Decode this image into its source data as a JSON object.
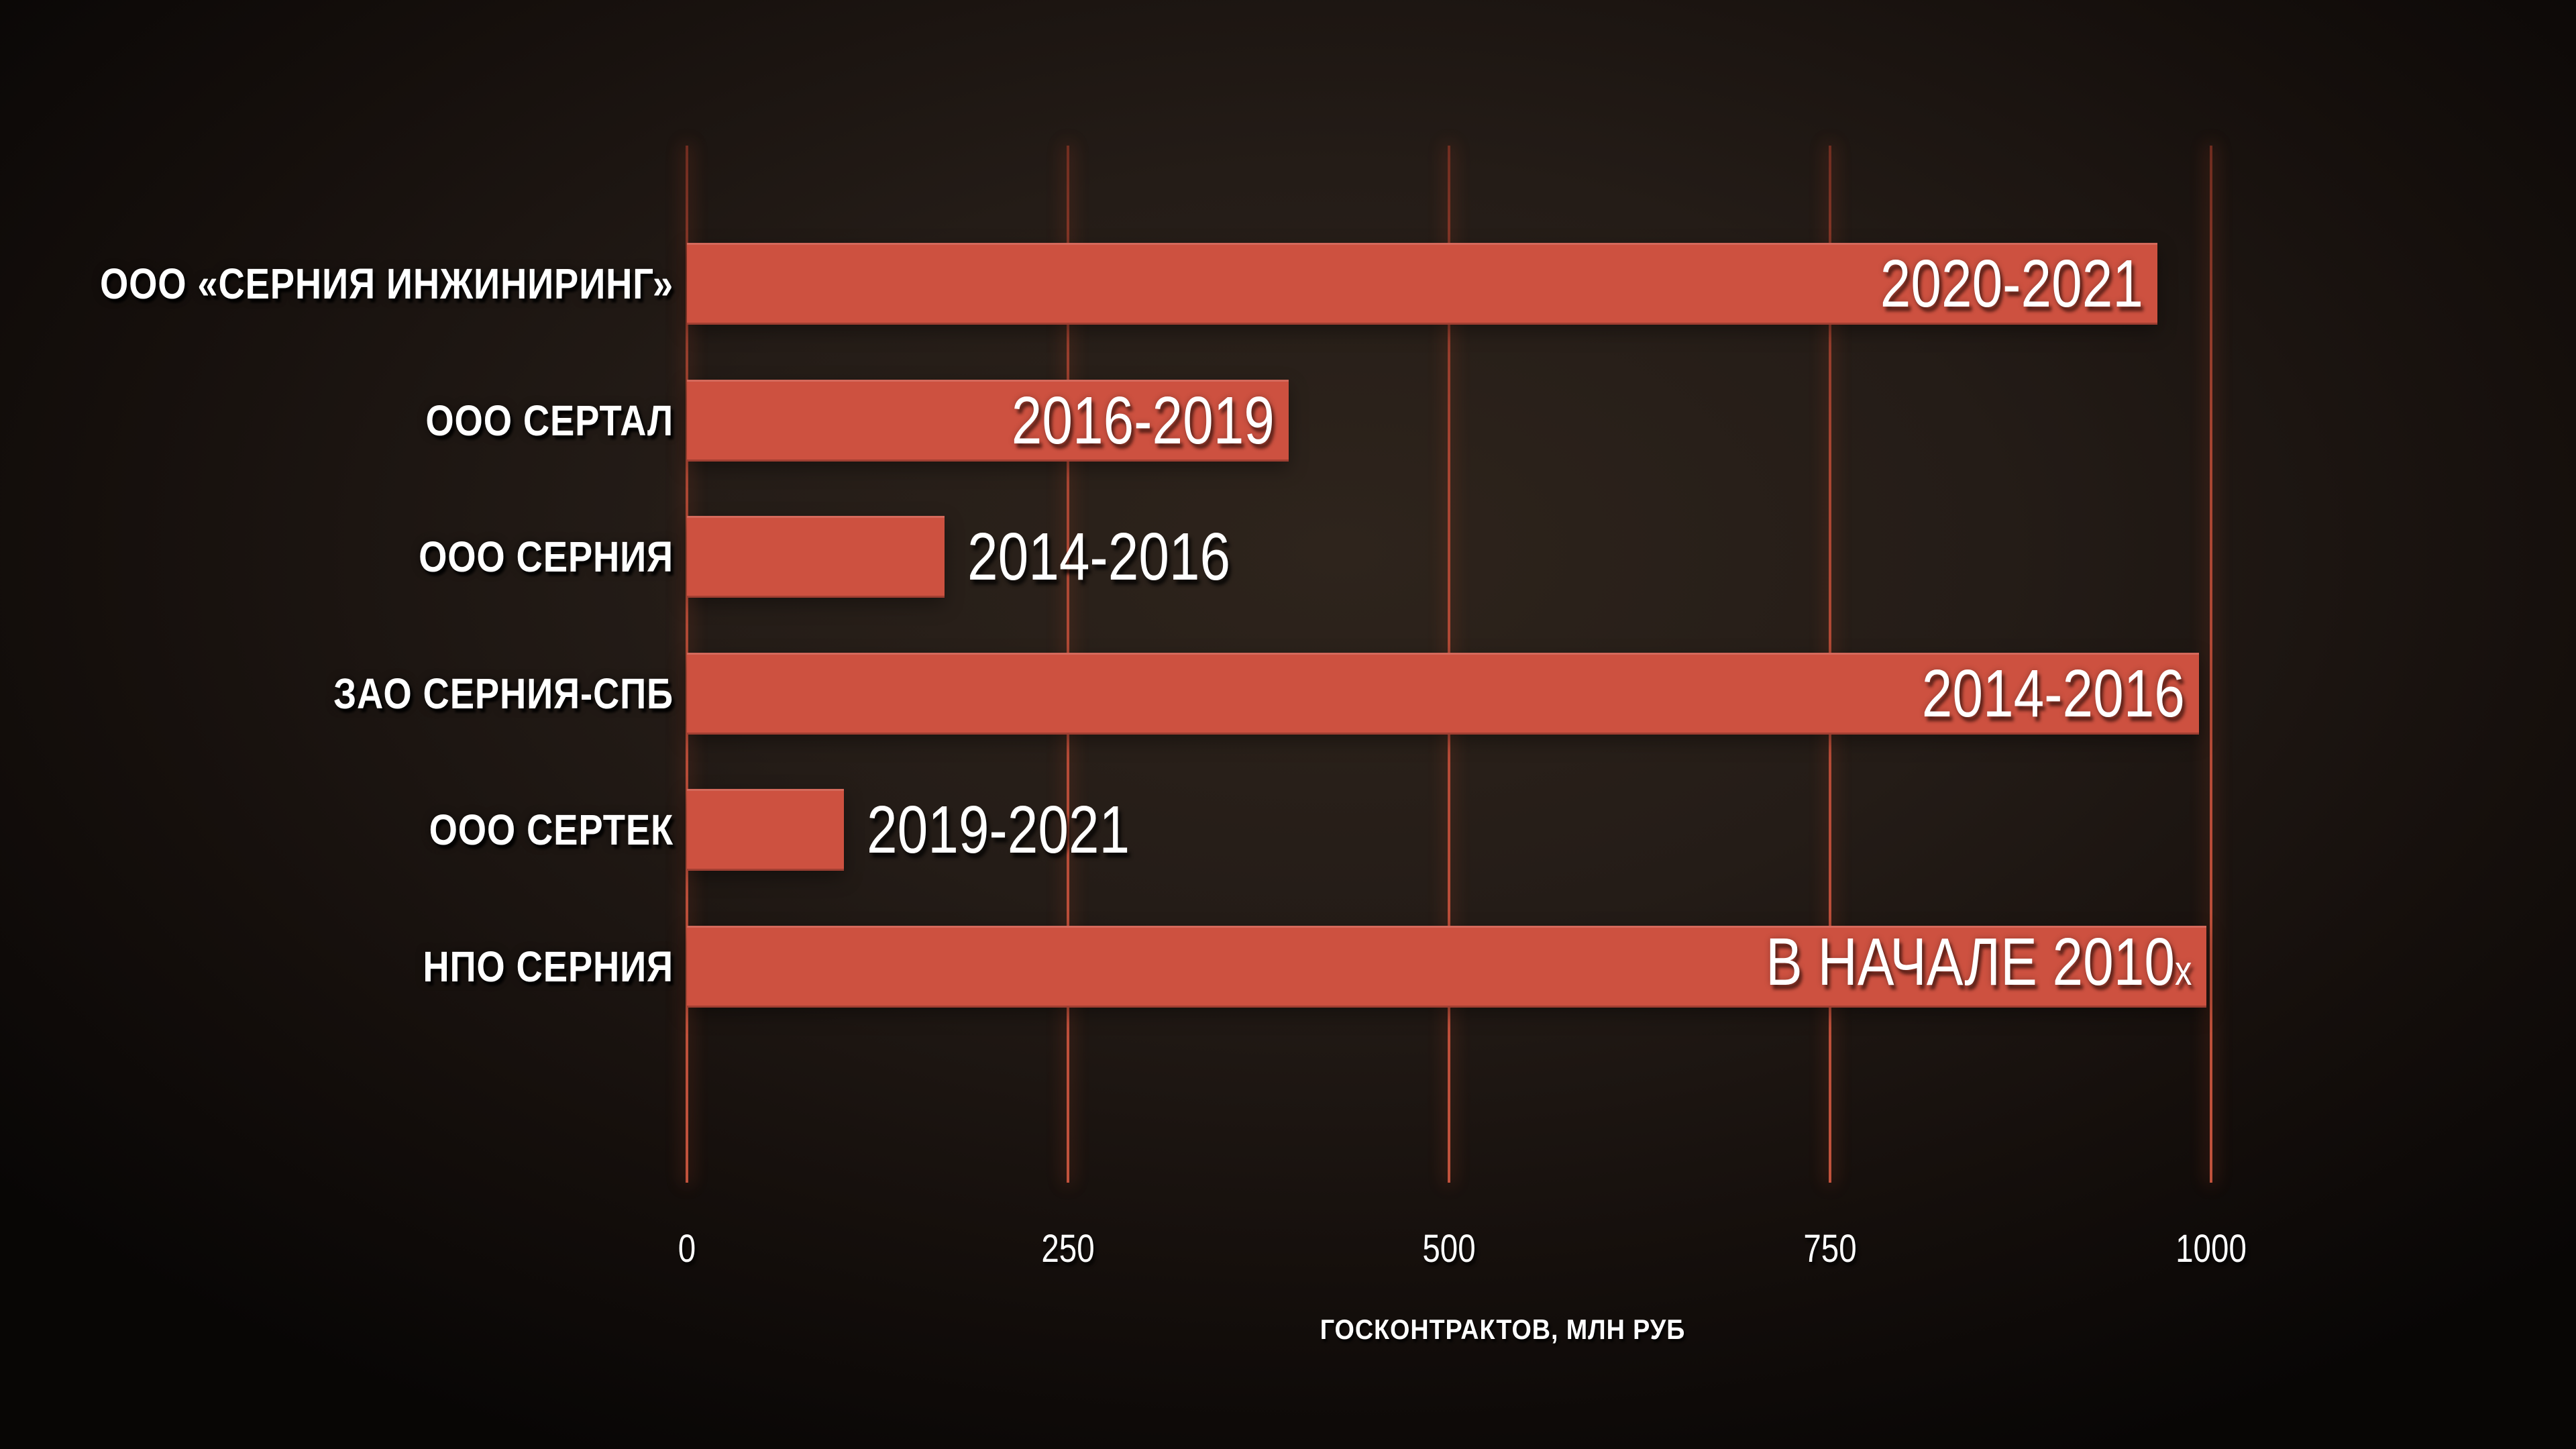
{
  "chart_data": {
    "type": "bar",
    "orientation": "horizontal",
    "title": "",
    "xlabel": "ГОСКОНТРАКТОВ, МЛН РУБ",
    "ylabel": "",
    "xlim": [
      0,
      1000
    ],
    "x_ticks": [
      "0",
      "250",
      "500",
      "750",
      "1000"
    ],
    "x_tick_values": [
      0,
      250,
      500,
      750,
      1000
    ],
    "grid": "vertical-gridlines-on",
    "legend": "none",
    "categories": [
      "ООО «СЕРНИЯ ИНЖИНИРИНГ»",
      "ООО СЕРТАЛ",
      "ООО СЕРНИЯ",
      "ЗАО СЕРНИЯ-СПБ",
      "ООО СЕРТЕК",
      "НПО СЕРНИЯ"
    ],
    "values": [
      965,
      395,
      169,
      992,
      103,
      997
    ],
    "bar_labels": [
      {
        "text": "2020-2021",
        "suffix": "",
        "placement": "inside"
      },
      {
        "text": "2016-2019",
        "suffix": "",
        "placement": "inside"
      },
      {
        "text": "2014-2016",
        "suffix": "",
        "placement": "outside"
      },
      {
        "text": "2014-2016",
        "suffix": "",
        "placement": "inside"
      },
      {
        "text": "2019-2021",
        "suffix": "",
        "placement": "outside"
      },
      {
        "text": "В НАЧАЛЕ 2010",
        "suffix": "х",
        "placement": "inside"
      }
    ],
    "colors": {
      "bar": "#cd5140",
      "gridline": "#c1523c",
      "background_center": "#2e241c",
      "background_edge": "#080605",
      "text": "#ffffff"
    }
  }
}
